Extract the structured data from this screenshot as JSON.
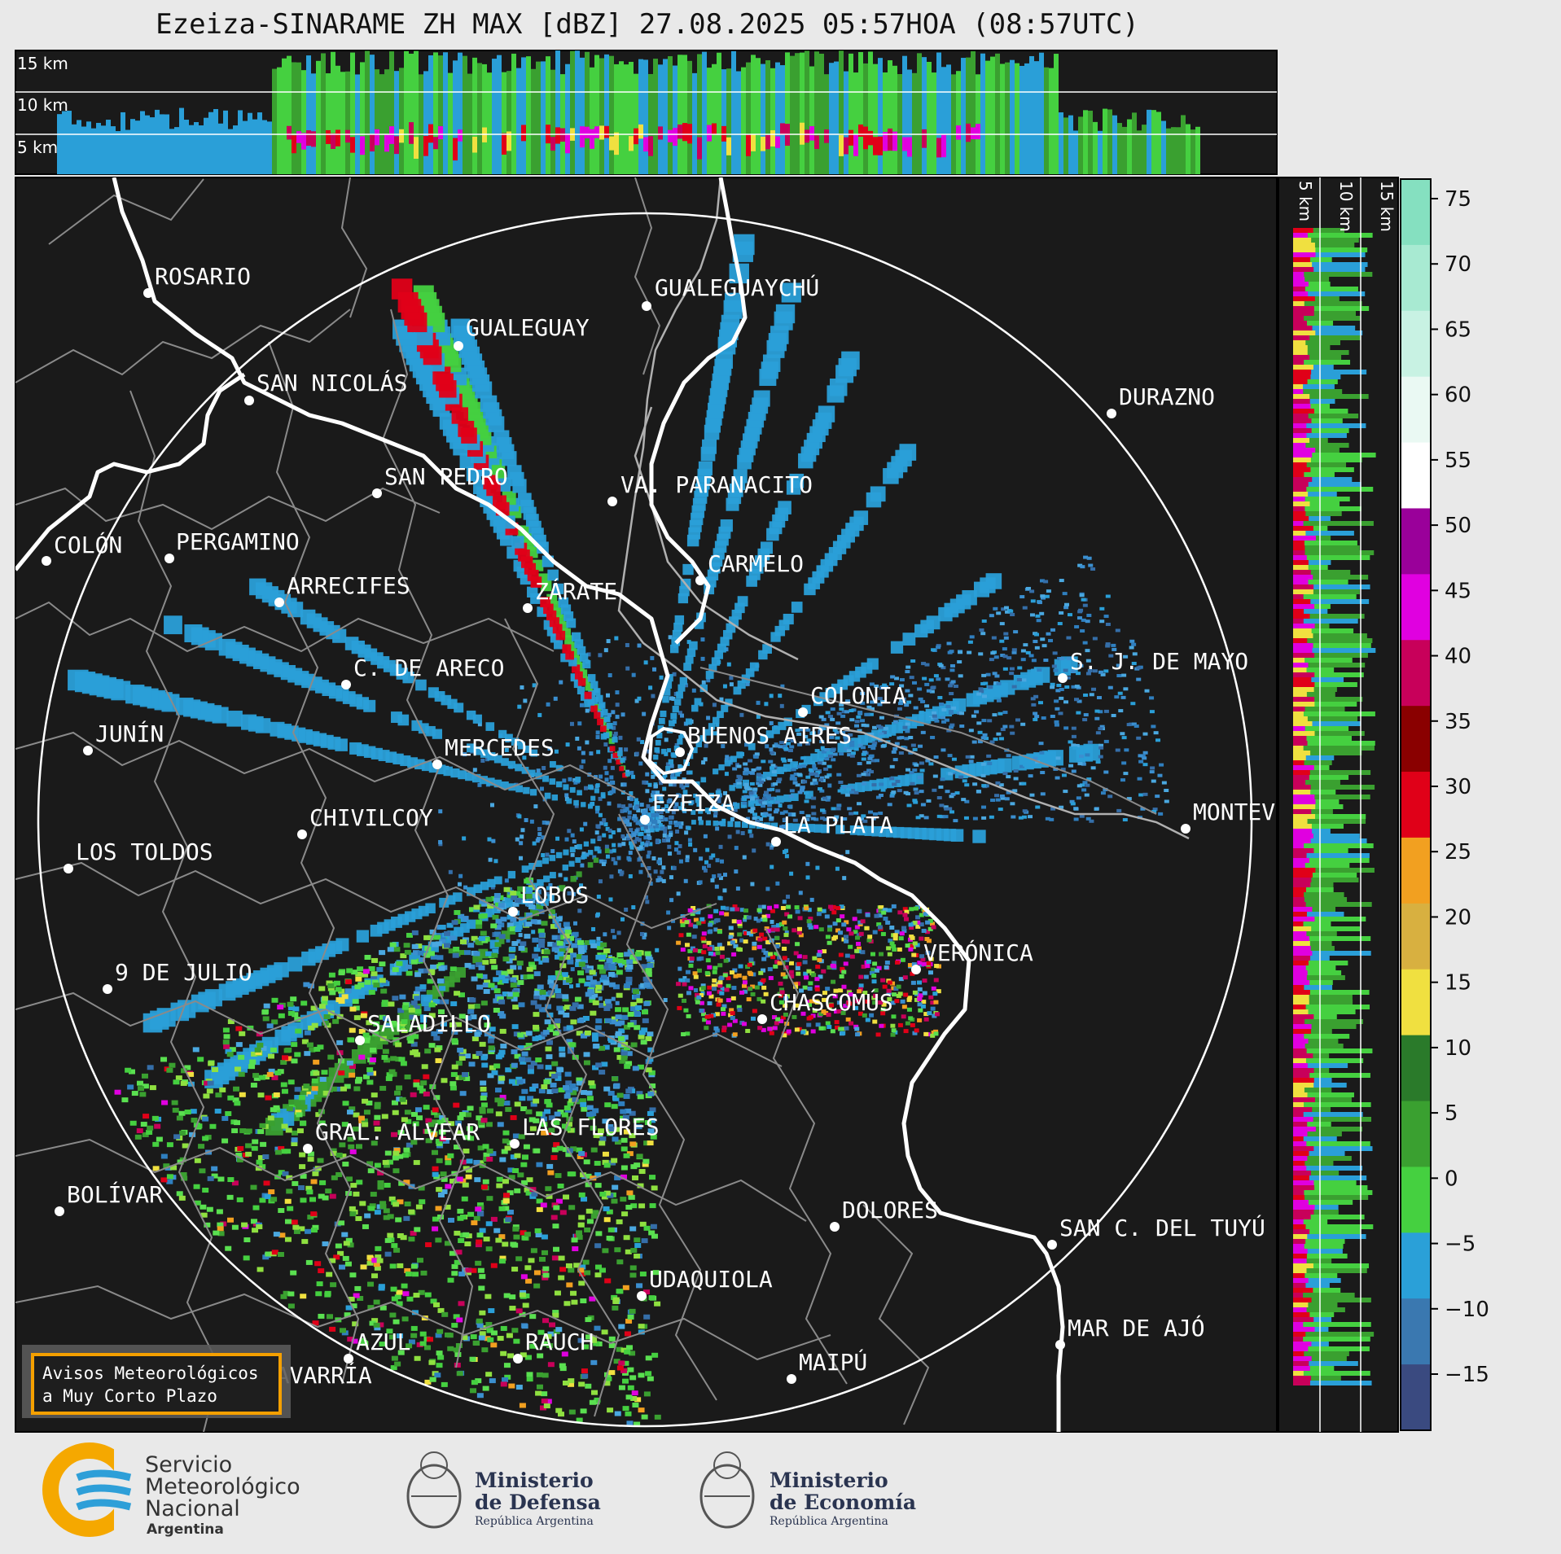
{
  "title": "Ezeiza-SINARAME ZH MAX [dBZ] 27.08.2025 05:57HOA (08:57UTC)",
  "top_profile": {
    "km_labels": [
      "15 km",
      "10 km",
      "5 km"
    ]
  },
  "side_profile": {
    "km_labels": [
      "5 km",
      "10 km",
      "15 km"
    ]
  },
  "colorbar": {
    "ticks": [
      "75",
      "70",
      "65",
      "60",
      "55",
      "50",
      "45",
      "40",
      "35",
      "30",
      "25",
      "20",
      "15",
      "10",
      "5",
      "0",
      "−5",
      "−10",
      "−15"
    ],
    "colors": [
      "#85e0c0",
      "#a8ead2",
      "#c8f2e3",
      "#eaf9f3",
      "#ffffff",
      "#9a009a",
      "#e000e0",
      "#c8005a",
      "#8a0000",
      "#e00018",
      "#f2a020",
      "#d8b040",
      "#f0e040",
      "#2a7a2a",
      "#3aa030",
      "#45d040",
      "#2aa0d8",
      "#3a78b0",
      "#3a4a80"
    ]
  },
  "cities": [
    {
      "name": "ROSARIO"
    },
    {
      "name": "GUALEGUAYCHÚ"
    },
    {
      "name": "GUALEGUAY"
    },
    {
      "name": "SAN NICOLÁS"
    },
    {
      "name": "DURAZNO"
    },
    {
      "name": "SAN PEDRO"
    },
    {
      "name": "VA. PARANACITO"
    },
    {
      "name": "COLÓN"
    },
    {
      "name": "PERGAMINO"
    },
    {
      "name": "CARMELO"
    },
    {
      "name": "ARRECIFES"
    },
    {
      "name": "ZÁRATE"
    },
    {
      "name": "S. J. DE MAYO"
    },
    {
      "name": "C. DE ARECO"
    },
    {
      "name": "COLONIA"
    },
    {
      "name": "JUNÍN"
    },
    {
      "name": "BUENOS AIRES"
    },
    {
      "name": "MERCEDES"
    },
    {
      "name": "EZEIZA"
    },
    {
      "name": "MONTEVIDEO"
    },
    {
      "name": "CHIVILCOY"
    },
    {
      "name": "LA PLATA"
    },
    {
      "name": "LOS TOLDOS"
    },
    {
      "name": "LOBOS"
    },
    {
      "name": "VERÓNICA"
    },
    {
      "name": "9 DE JULIO"
    },
    {
      "name": "CHASCOMÚS"
    },
    {
      "name": "SALADILLO"
    },
    {
      "name": "GRAL. ALVEAR"
    },
    {
      "name": "LAS FLORES"
    },
    {
      "name": "BOLÍVAR"
    },
    {
      "name": "DOLORES"
    },
    {
      "name": "SAN C. DEL TUYÚ"
    },
    {
      "name": "UDAQUIOLA"
    },
    {
      "name": "MAR DE AJÓ"
    },
    {
      "name": "AZUL"
    },
    {
      "name": "RAUCH"
    },
    {
      "name": "OLAVARRÍA"
    },
    {
      "name": "MAIPÚ"
    }
  ],
  "notice_box": {
    "line1": "Avisos Meteorológicos",
    "line2": "a Muy Corto Plazo",
    "border_color": "#f5a000"
  },
  "logos": {
    "smn": {
      "line1": "Servicio",
      "line2": "Meteorológico",
      "line3": "Nacional",
      "line4": "Argentina"
    },
    "defensa": {
      "line1": "Ministerio",
      "line2": "de Defensa",
      "line3": "República Argentina"
    },
    "economia": {
      "line1": "Ministerio",
      "line2": "de Economía",
      "line3": "República Argentina"
    }
  },
  "colors": {
    "map_background": "#1a1a1a",
    "coast": "#ffffff",
    "borders": "#8a8a8a",
    "range_ring": "#ffffff"
  }
}
